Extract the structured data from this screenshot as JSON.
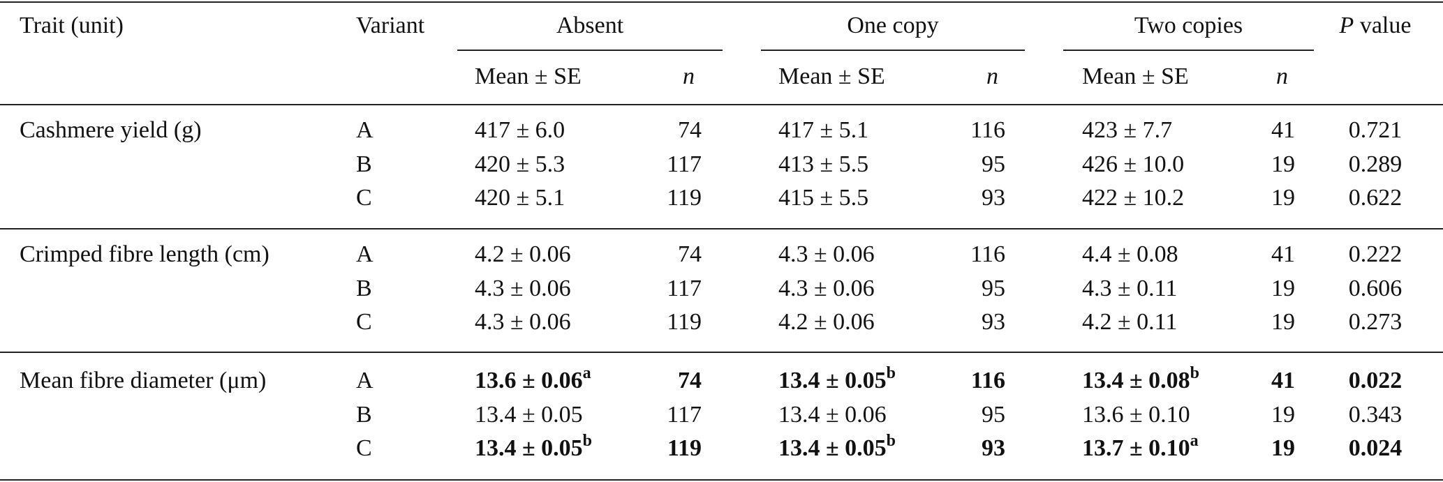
{
  "table": {
    "header": {
      "trait": "Trait (unit)",
      "variant": "Variant",
      "groups": [
        "Absent",
        "One copy",
        "Two copies"
      ],
      "p_italic": "P",
      "p_rest": "value",
      "sub": [
        "Mean ± SE",
        "n"
      ]
    },
    "sections": [
      {
        "trait": "Cashmere yield (g)",
        "rows": [
          {
            "variant": "A",
            "bold": false,
            "groups": [
              {
                "mean_se": "417 ± 6.0",
                "n": 74
              },
              {
                "mean_se": "417 ± 5.1",
                "n": 116
              },
              {
                "mean_se": "423 ± 7.7",
                "n": 41
              }
            ],
            "p": 0.721
          },
          {
            "variant": "B",
            "bold": false,
            "groups": [
              {
                "mean_se": "420 ± 5.3",
                "n": 117
              },
              {
                "mean_se": "413 ± 5.5",
                "n": 95
              },
              {
                "mean_se": "426 ± 10.0",
                "n": 19
              }
            ],
            "p": 0.289
          },
          {
            "variant": "C",
            "bold": false,
            "groups": [
              {
                "mean_se": "420 ± 5.1",
                "n": 119
              },
              {
                "mean_se": "415 ± 5.5",
                "n": 93
              },
              {
                "mean_se": "422 ± 10.2",
                "n": 19
              }
            ],
            "p": 0.622
          }
        ]
      },
      {
        "trait": "Crimped fibre length (cm)",
        "rows": [
          {
            "variant": "A",
            "bold": false,
            "groups": [
              {
                "mean_se": "4.2 ± 0.06",
                "n": 74
              },
              {
                "mean_se": "4.3 ± 0.06",
                "n": 116
              },
              {
                "mean_se": "4.4 ± 0.08",
                "n": 41
              }
            ],
            "p": 0.222
          },
          {
            "variant": "B",
            "bold": false,
            "groups": [
              {
                "mean_se": "4.3 ± 0.06",
                "n": 117
              },
              {
                "mean_se": "4.3 ± 0.06",
                "n": 95
              },
              {
                "mean_se": "4.3 ± 0.11",
                "n": 19
              }
            ],
            "p": 0.606
          },
          {
            "variant": "C",
            "bold": false,
            "groups": [
              {
                "mean_se": "4.3 ± 0.06",
                "n": 119
              },
              {
                "mean_se": "4.2 ± 0.06",
                "n": 93
              },
              {
                "mean_se": "4.2 ± 0.11",
                "n": 19
              }
            ],
            "p": 0.273
          }
        ]
      },
      {
        "trait": "Mean fibre diameter (μm)",
        "rows": [
          {
            "variant": "A",
            "bold": true,
            "groups": [
              {
                "mean_se": "13.6 ± 0.06",
                "sup": "a",
                "n": 74
              },
              {
                "mean_se": "13.4 ± 0.05",
                "sup": "b",
                "n": 116
              },
              {
                "mean_se": "13.4 ± 0.08",
                "sup": "b",
                "n": 41
              }
            ],
            "p": 0.022
          },
          {
            "variant": "B",
            "bold": false,
            "groups": [
              {
                "mean_se": "13.4 ± 0.05",
                "n": 117
              },
              {
                "mean_se": "13.4 ± 0.06",
                "n": 95
              },
              {
                "mean_se": "13.6 ± 0.10",
                "n": 19
              }
            ],
            "p": 0.343
          },
          {
            "variant": "C",
            "bold": true,
            "groups": [
              {
                "mean_se": "13.4 ± 0.05",
                "sup": "b",
                "n": 119
              },
              {
                "mean_se": "13.4 ± 0.05",
                "sup": "b",
                "n": 93
              },
              {
                "mean_se": "13.7 ± 0.10",
                "sup": "a",
                "n": 19
              }
            ],
            "p": 0.024
          }
        ]
      }
    ]
  }
}
